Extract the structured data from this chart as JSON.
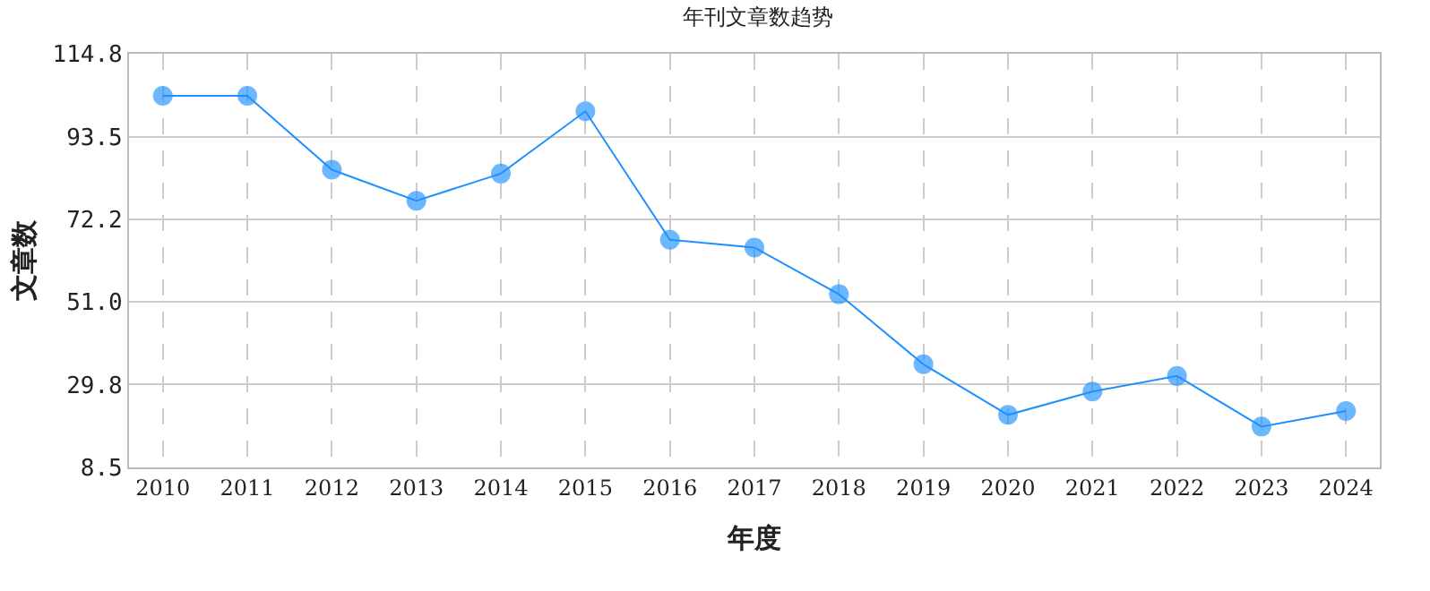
{
  "chart_data": {
    "type": "line",
    "title": "年刊文章数趋势",
    "xlabel": "年度",
    "ylabel": "文章数",
    "categories": [
      "2010",
      "2011",
      "2012",
      "2013",
      "2014",
      "2015",
      "2016",
      "2017",
      "2018",
      "2019",
      "2020",
      "2021",
      "2022",
      "2023",
      "2024"
    ],
    "series": [
      {
        "color": "#1e90ff",
        "values": [
          104,
          104,
          85,
          77,
          84,
          100,
          67,
          65,
          53,
          35,
          22,
          28,
          32,
          19,
          23
        ]
      }
    ],
    "ylim": [
      8.5,
      114.8
    ],
    "yticks": [
      8.5,
      29.8,
      {
        "value": 51.0,
        "label": "51.0"
      },
      72.2,
      93.5,
      114.8
    ],
    "grid": true,
    "marker": "circle",
    "line_style": "solid"
  }
}
